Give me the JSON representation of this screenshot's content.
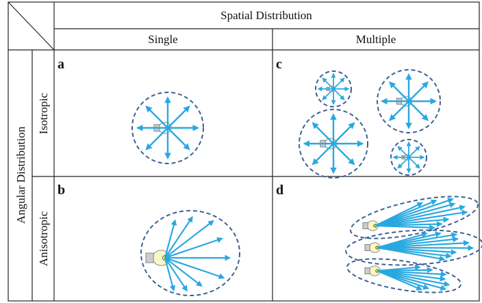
{
  "header": {
    "title": "Spatial Distribution",
    "columns": [
      "Single",
      "Multiple"
    ]
  },
  "rows": {
    "title": "Angular Distribution",
    "labels": [
      "Isotropic",
      "Anisotropic"
    ]
  },
  "panels": [
    "a",
    "b",
    "c",
    "d"
  ]
}
